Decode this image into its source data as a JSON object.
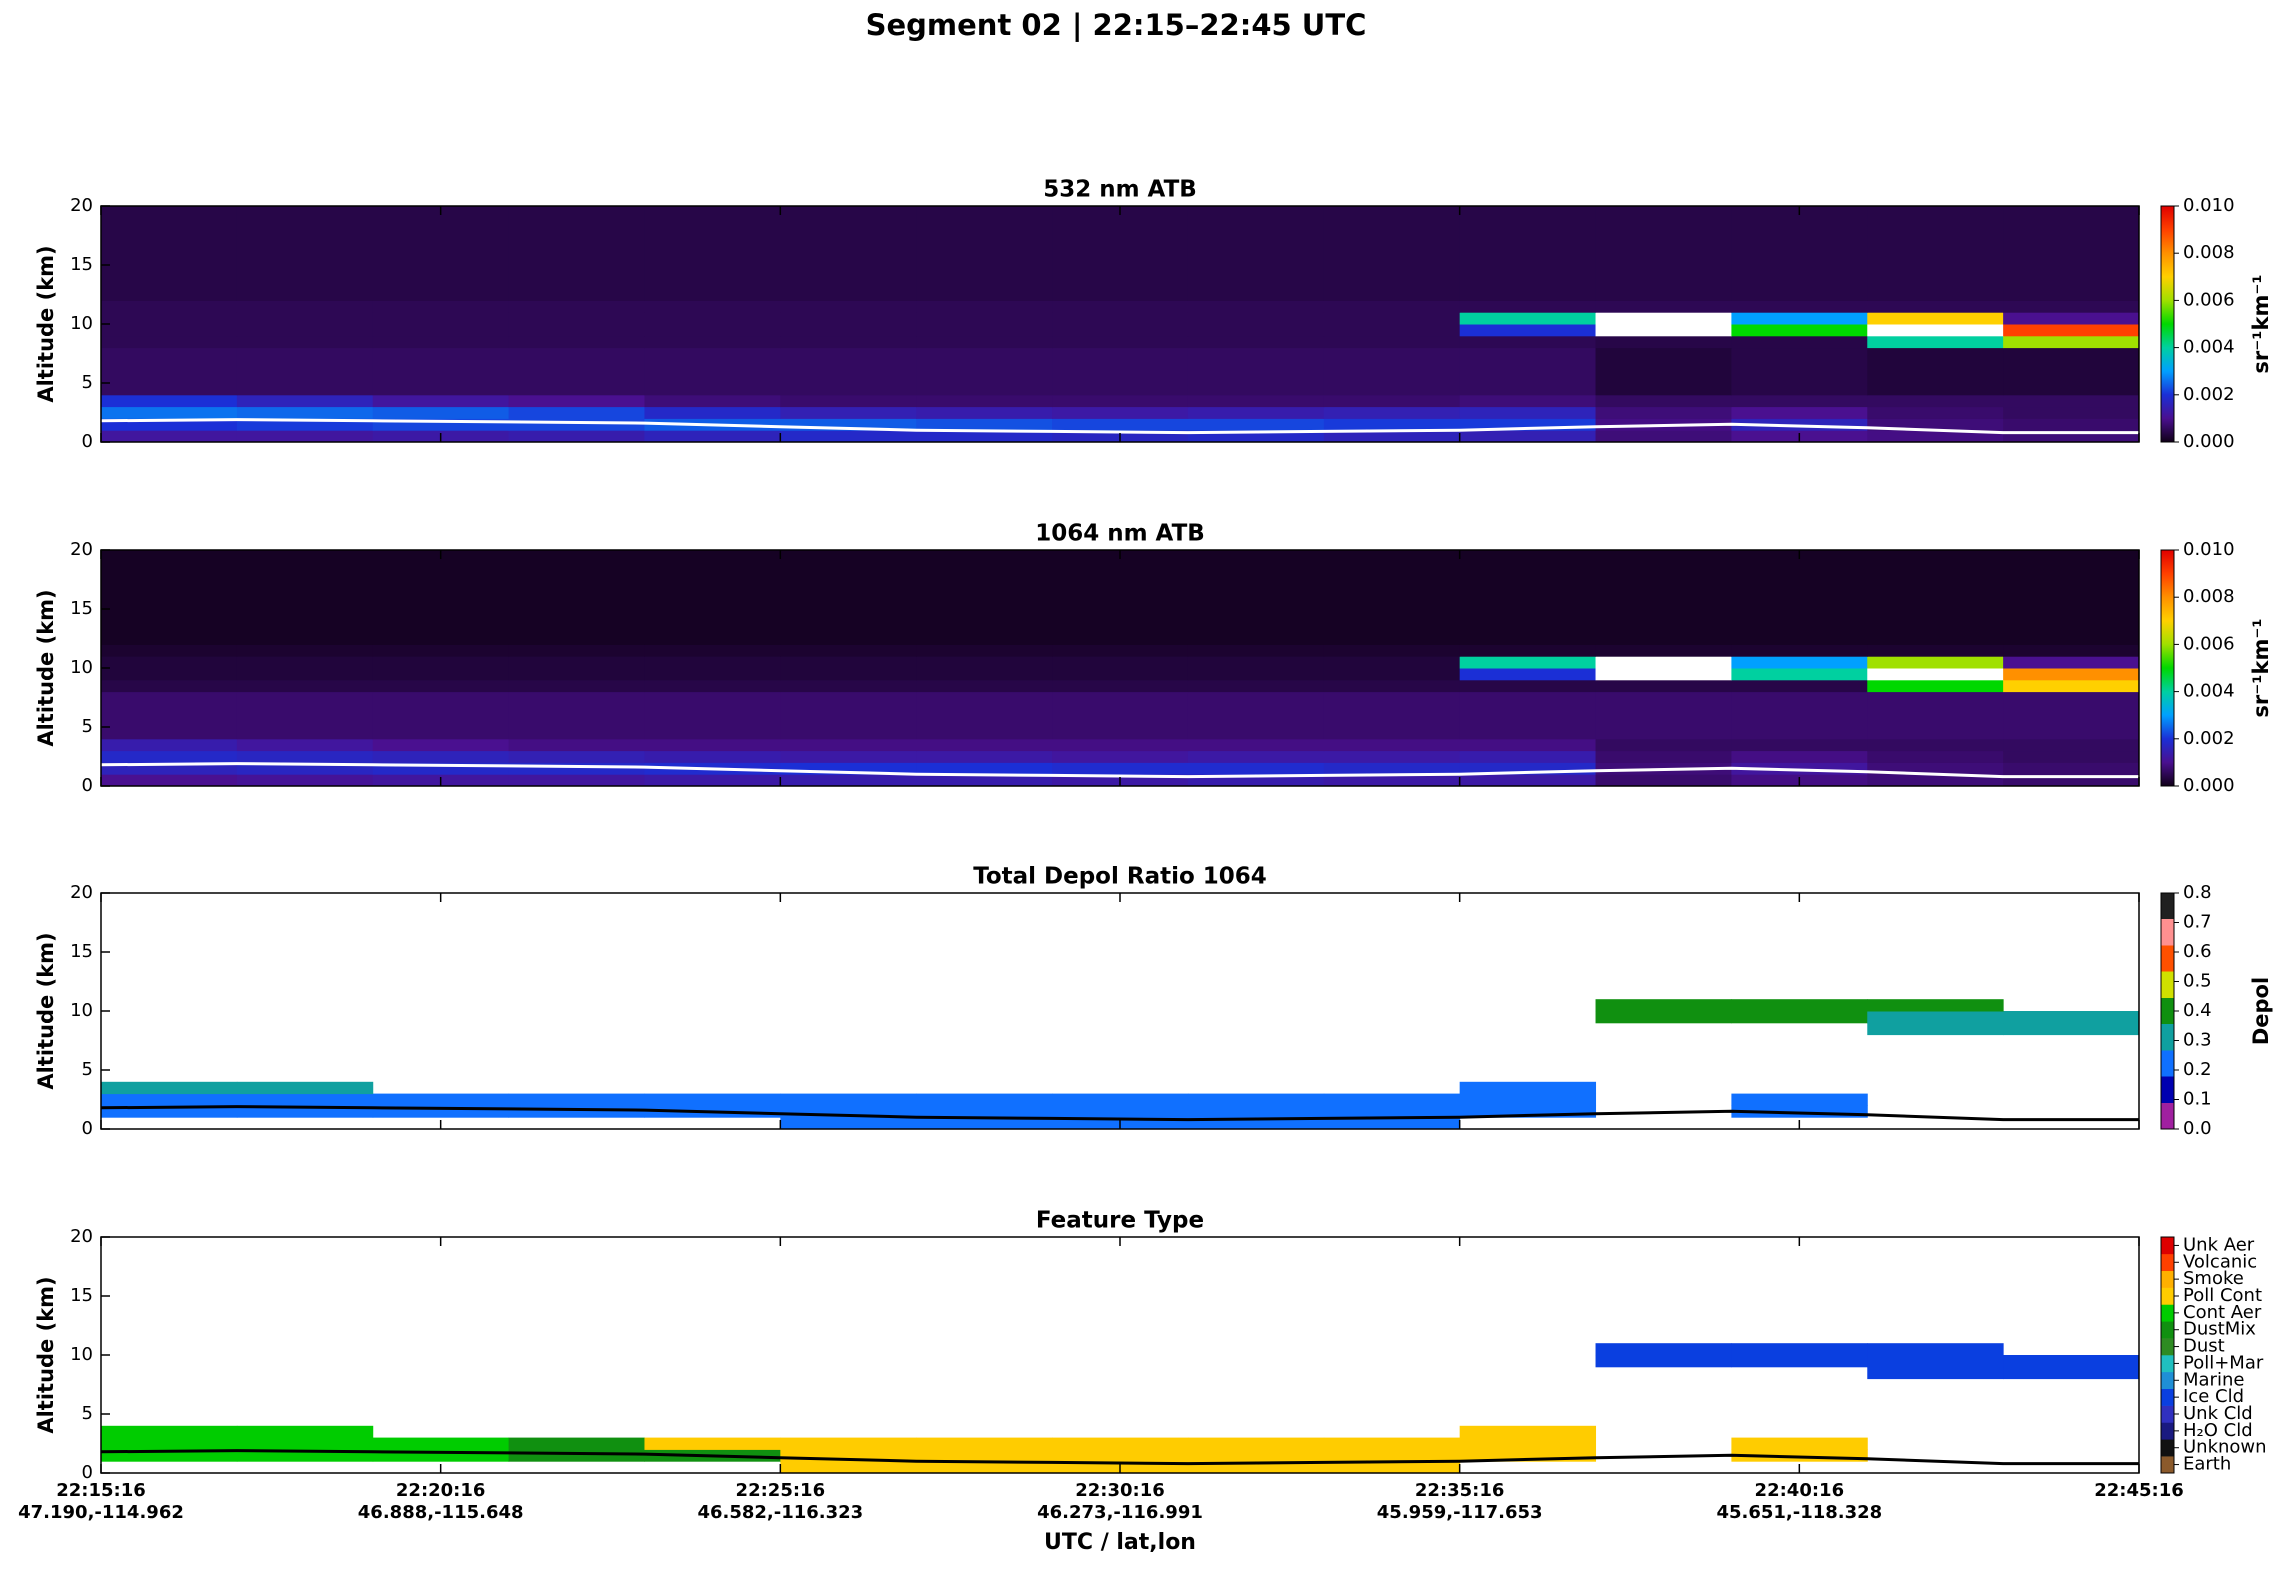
{
  "title": "Segment 02  |  22:15–22:45 UTC",
  "x_axis": {
    "label": "UTC / lat,lon",
    "xlim": [
      "22:15:16",
      "22:45:16"
    ],
    "edges": [
      "22:15:16",
      "22:17:16",
      "22:19:16",
      "22:21:16",
      "22:23:16",
      "22:25:16",
      "22:27:16",
      "22:29:16",
      "22:31:16",
      "22:33:16",
      "22:35:16",
      "22:37:16",
      "22:39:16",
      "22:41:16",
      "22:43:16",
      "22:45:16"
    ],
    "xticks": [
      "22:15:16",
      "22:20:16",
      "22:25:16",
      "22:30:16",
      "22:35:16",
      "22:40:16",
      "22:45:16"
    ],
    "xtick_positions": [
      "47.190,-114.962",
      "46.888,-115.648",
      "46.582,-116.323",
      "46.273,-116.991",
      "45.959,-117.653",
      "45.651,-118.328",
      null
    ]
  },
  "chart_data": [
    {
      "type": "heatmap",
      "title": "532 nm ATB",
      "ylabel": "Altitude (km)",
      "ylim": [
        0,
        20
      ],
      "yticks": [
        0,
        5,
        10,
        15,
        20
      ],
      "y_edges": [
        0,
        1,
        2,
        3,
        4,
        8,
        9,
        10,
        11,
        12,
        20
      ],
      "z": [
        [
          0.0012,
          0.0012,
          0.0013,
          0.0014,
          0.0016,
          0.0018,
          0.0018,
          0.0017,
          0.0018,
          0.0016,
          0.0015,
          0.0008,
          0.001,
          0.0009,
          0.0008
        ],
        [
          0.002,
          0.0021,
          0.0022,
          0.0022,
          0.0024,
          0.0024,
          0.0023,
          0.0022,
          0.0022,
          0.0021,
          0.0021,
          0.0009,
          0.0016,
          0.0008,
          0.0007
        ],
        [
          0.0026,
          0.0025,
          0.0024,
          0.0022,
          0.0018,
          0.0015,
          0.0014,
          0.0013,
          0.0014,
          0.0015,
          0.0016,
          0.0008,
          0.001,
          0.0007,
          0.0006
        ],
        [
          0.002,
          0.0016,
          0.0012,
          0.001,
          0.0008,
          0.0007,
          0.0007,
          0.0007,
          0.0007,
          0.0007,
          0.0008,
          0.0006,
          0.0006,
          0.0006,
          0.0006
        ],
        [
          0.0006,
          0.0006,
          0.0006,
          0.0006,
          0.0006,
          0.0006,
          0.0006,
          0.0006,
          0.0006,
          0.0006,
          0.0006,
          0.0003,
          0.0004,
          0.0003,
          0.0003
        ],
        [
          0.0005,
          0.0005,
          0.0005,
          0.0005,
          0.0005,
          0.0005,
          0.0005,
          0.0005,
          0.0005,
          0.0005,
          0.0005,
          0.0004,
          0.0004,
          0.004,
          0.006
        ],
        [
          0.0005,
          0.0005,
          0.0005,
          0.0005,
          0.0005,
          0.0005,
          0.0005,
          0.0005,
          0.0005,
          0.0005,
          0.002,
          0.012,
          0.005,
          0.012,
          0.009
        ],
        [
          0.0005,
          0.0005,
          0.0005,
          0.0005,
          0.0005,
          0.0005,
          0.0005,
          0.0005,
          0.0005,
          0.0005,
          0.004,
          0.012,
          0.003,
          0.007,
          0.001
        ],
        [
          0.0005,
          0.0005,
          0.0005,
          0.0005,
          0.0005,
          0.0005,
          0.0005,
          0.0005,
          0.0005,
          0.0005,
          0.0005,
          0.0005,
          0.0005,
          0.0005,
          0.0005
        ],
        [
          0.0004,
          0.0004,
          0.0004,
          0.0004,
          0.0004,
          0.0004,
          0.0004,
          0.0004,
          0.0004,
          0.0004,
          0.0004,
          0.0004,
          0.0004,
          0.0004,
          0.0004
        ]
      ],
      "surface": [
        1.8,
        1.9,
        1.8,
        1.7,
        1.6,
        1.3,
        1.0,
        0.9,
        0.8,
        0.9,
        1.0,
        1.3,
        1.5,
        1.2,
        0.8,
        0.8
      ],
      "surface_color": "#ffffff",
      "clim": [
        0,
        0.01
      ],
      "over_color": "#ffffff",
      "colormap": [
        "#100018",
        "#4a1090",
        "#1b2fd6",
        "#00a0ff",
        "#00d0a0",
        "#00d800",
        "#a0e000",
        "#ffd000",
        "#ff9000",
        "#ff4000",
        "#e00000"
      ],
      "cticks": [
        {
          "value": 0,
          "label": "0.000"
        },
        {
          "value": 0.002,
          "label": "0.002"
        },
        {
          "value": 0.004,
          "label": "0.004"
        },
        {
          "value": 0.006,
          "label": "0.006"
        },
        {
          "value": 0.008,
          "label": "0.008"
        },
        {
          "value": 0.01,
          "label": "0.010"
        }
      ],
      "clabel": "sr⁻¹km⁻¹"
    },
    {
      "type": "heatmap",
      "title": "1064 nm ATB",
      "ylabel": "Altitude (km)",
      "ylim": [
        0,
        20
      ],
      "yticks": [
        0,
        5,
        10,
        15,
        20
      ],
      "y_edges": [
        0,
        1,
        2,
        3,
        4,
        8,
        9,
        10,
        11,
        12,
        20
      ],
      "z": [
        [
          0.001,
          0.0011,
          0.0012,
          0.0012,
          0.0013,
          0.0014,
          0.0014,
          0.0013,
          0.0014,
          0.0013,
          0.0013,
          0.0007,
          0.0009,
          0.0008,
          0.0007
        ],
        [
          0.0016,
          0.0017,
          0.0018,
          0.0018,
          0.0019,
          0.002,
          0.002,
          0.0019,
          0.0019,
          0.0018,
          0.0018,
          0.0008,
          0.0012,
          0.0008,
          0.0007
        ],
        [
          0.0018,
          0.0017,
          0.0016,
          0.0015,
          0.0014,
          0.0013,
          0.0013,
          0.0012,
          0.0013,
          0.0013,
          0.0014,
          0.0007,
          0.0009,
          0.0007,
          0.0006
        ],
        [
          0.0014,
          0.0012,
          0.001,
          0.0009,
          0.0009,
          0.0009,
          0.0009,
          0.0009,
          0.0009,
          0.0009,
          0.0009,
          0.0006,
          0.0006,
          0.0006,
          0.0006
        ],
        [
          0.0007,
          0.0007,
          0.0007,
          0.0007,
          0.0007,
          0.0007,
          0.0007,
          0.0007,
          0.0007,
          0.0007,
          0.0007,
          0.0007,
          0.0007,
          0.0007,
          0.0007
        ],
        [
          0.0004,
          0.0004,
          0.0004,
          0.0004,
          0.0004,
          0.0004,
          0.0004,
          0.0004,
          0.0004,
          0.0004,
          0.0004,
          0.0004,
          0.0004,
          0.005,
          0.007
        ],
        [
          0.0003,
          0.0003,
          0.0003,
          0.0003,
          0.0003,
          0.0003,
          0.0003,
          0.0003,
          0.0003,
          0.0003,
          0.002,
          0.011,
          0.004,
          0.012,
          0.008
        ],
        [
          0.0003,
          0.0003,
          0.0003,
          0.0003,
          0.0003,
          0.0003,
          0.0003,
          0.0003,
          0.0003,
          0.0003,
          0.004,
          0.012,
          0.003,
          0.006,
          0.001
        ],
        [
          0.0002,
          0.0002,
          0.0002,
          0.0002,
          0.0002,
          0.0002,
          0.0002,
          0.0002,
          0.0002,
          0.0002,
          0.0002,
          0.0002,
          0.0002,
          0.0002,
          0.0002
        ],
        [
          0.0001,
          0.0001,
          0.0001,
          0.0001,
          0.0001,
          0.0001,
          0.0001,
          0.0001,
          0.0001,
          0.0001,
          0.0001,
          0.0001,
          0.0001,
          0.0001,
          0.0001
        ]
      ],
      "surface": [
        1.8,
        1.9,
        1.8,
        1.7,
        1.6,
        1.3,
        1.0,
        0.9,
        0.8,
        0.9,
        1.0,
        1.3,
        1.5,
        1.2,
        0.8,
        0.8
      ],
      "surface_color": "#ffffff",
      "clim": [
        0,
        0.01
      ],
      "over_color": "#ffffff",
      "colormap": [
        "#100018",
        "#4a1090",
        "#1b2fd6",
        "#00a0ff",
        "#00d0a0",
        "#00d800",
        "#a0e000",
        "#ffd000",
        "#ff9000",
        "#ff4000",
        "#e00000"
      ],
      "cticks": [
        {
          "value": 0,
          "label": "0.000"
        },
        {
          "value": 0.002,
          "label": "0.002"
        },
        {
          "value": 0.004,
          "label": "0.004"
        },
        {
          "value": 0.006,
          "label": "0.006"
        },
        {
          "value": 0.008,
          "label": "0.008"
        },
        {
          "value": 0.01,
          "label": "0.010"
        }
      ],
      "clabel": "sr⁻¹km⁻¹"
    },
    {
      "type": "heatmap",
      "title": "Total Depol Ratio 1064",
      "ylabel": "Altitude (km)",
      "ylim": [
        0,
        20
      ],
      "yticks": [
        0,
        5,
        10,
        15,
        20
      ],
      "y_edges": [
        0,
        1,
        2,
        3,
        4,
        8,
        9,
        10,
        11,
        12,
        20
      ],
      "z": [
        [
          null,
          null,
          null,
          null,
          null,
          0.25,
          0.22,
          0.28,
          0.24,
          0.26,
          null,
          null,
          null,
          null,
          null
        ],
        [
          0.28,
          0.3,
          0.26,
          0.27,
          0.25,
          0.24,
          0.23,
          0.25,
          0.26,
          0.27,
          0.28,
          null,
          0.22,
          null,
          null
        ],
        [
          0.3,
          0.29,
          0.28,
          0.27,
          0.26,
          0.25,
          0.24,
          0.24,
          0.25,
          0.26,
          0.27,
          null,
          0.25,
          null,
          null
        ],
        [
          0.32,
          0.31,
          null,
          null,
          null,
          null,
          null,
          null,
          null,
          null,
          0.28,
          null,
          null,
          null,
          null
        ],
        [
          null,
          null,
          null,
          null,
          null,
          null,
          null,
          null,
          null,
          null,
          null,
          null,
          null,
          null,
          null
        ],
        [
          null,
          null,
          null,
          null,
          null,
          null,
          null,
          null,
          null,
          null,
          null,
          null,
          null,
          0.38,
          0.35
        ],
        [
          null,
          null,
          null,
          null,
          null,
          null,
          null,
          null,
          null,
          null,
          null,
          0.42,
          0.4,
          0.36,
          0.34
        ],
        [
          null,
          null,
          null,
          null,
          null,
          null,
          null,
          null,
          null,
          null,
          null,
          0.47,
          0.45,
          0.41,
          null
        ],
        [
          null,
          null,
          null,
          null,
          null,
          null,
          null,
          null,
          null,
          null,
          null,
          null,
          null,
          null,
          null
        ],
        [
          null,
          null,
          null,
          null,
          null,
          null,
          null,
          null,
          null,
          null,
          null,
          null,
          null,
          null,
          null
        ]
      ],
      "surface": [
        1.8,
        1.9,
        1.8,
        1.7,
        1.6,
        1.3,
        1.0,
        0.9,
        0.8,
        0.9,
        1.0,
        1.3,
        1.5,
        1.2,
        0.8,
        0.8
      ],
      "surface_color": "#000000",
      "clim": [
        0,
        0.8
      ],
      "colormap": [
        "#a020a0",
        "#0000b0",
        "#1070ff",
        "#10a0a0",
        "#109010",
        "#d0e000",
        "#ff5000",
        "#ff9090",
        "#202020"
      ],
      "discrete": true,
      "cticks": [
        {
          "value": 0,
          "label": "0.0"
        },
        0.1,
        0.2,
        0.3,
        0.4,
        0.5,
        0.6,
        0.7,
        0.8
      ],
      "clabel": "Depol"
    },
    {
      "type": "heatmap",
      "title": "Feature Type",
      "ylabel": "Altitude (km)",
      "ylim": [
        0,
        20
      ],
      "yticks": [
        0,
        5,
        10,
        15,
        20
      ],
      "y_edges": [
        0,
        1,
        2,
        3,
        4,
        8,
        9,
        10,
        11,
        12,
        20
      ],
      "z": [
        [
          null,
          null,
          null,
          null,
          null,
          "Poll Cont",
          "Poll Cont",
          "Poll Cont",
          "Poll Cont",
          "Poll Cont",
          null,
          null,
          null,
          null,
          null
        ],
        [
          "Cont Aer",
          "Cont Aer",
          "Cont Aer",
          "DustMix",
          "DustMix",
          "Poll Cont",
          "Poll Cont",
          "Poll Cont",
          "Poll Cont",
          "Poll Cont",
          "Poll Cont",
          null,
          "Poll Cont",
          null,
          null
        ],
        [
          "Cont Aer",
          "Cont Aer",
          "Cont Aer",
          "DustMix",
          "Poll Cont",
          "Poll Cont",
          "Poll Cont",
          "Poll Cont",
          "Poll Cont",
          "Poll Cont",
          "Poll Cont",
          null,
          "Poll Cont",
          null,
          null
        ],
        [
          "Cont Aer",
          "Cont Aer",
          null,
          null,
          null,
          null,
          null,
          null,
          null,
          null,
          "Poll Cont",
          null,
          null,
          null,
          null
        ],
        [
          null,
          null,
          null,
          null,
          null,
          null,
          null,
          null,
          null,
          null,
          null,
          null,
          null,
          null,
          null
        ],
        [
          null,
          null,
          null,
          null,
          null,
          null,
          null,
          null,
          null,
          null,
          null,
          null,
          null,
          "Ice Cld",
          "Ice Cld"
        ],
        [
          null,
          null,
          null,
          null,
          null,
          null,
          null,
          null,
          null,
          null,
          null,
          "Ice Cld",
          "Ice Cld",
          "Ice Cld",
          "Ice Cld"
        ],
        [
          null,
          null,
          null,
          null,
          null,
          null,
          null,
          null,
          null,
          null,
          null,
          "Ice Cld",
          "Ice Cld",
          "Ice Cld",
          null
        ],
        [
          null,
          null,
          null,
          null,
          null,
          null,
          null,
          null,
          null,
          null,
          null,
          null,
          null,
          null,
          null
        ],
        [
          null,
          null,
          null,
          null,
          null,
          null,
          null,
          null,
          null,
          null,
          null,
          null,
          null,
          null,
          null
        ]
      ],
      "surface": [
        1.8,
        1.9,
        1.8,
        1.7,
        1.6,
        1.3,
        1.0,
        0.9,
        0.8,
        0.9,
        1.0,
        1.3,
        1.5,
        1.2,
        0.8,
        0.8
      ],
      "surface_color": "#000000",
      "classes": [
        "Earth",
        "Unknown",
        "H₂O Cld",
        "Unk Cld",
        "Ice Cld",
        "Marine",
        "Poll+Mar",
        "Dust",
        "DustMix",
        "Cont Aer",
        "Poll Cont",
        "Smoke",
        "Volcanic",
        "Unk Aer"
      ],
      "class_colors": [
        "#8b5a2b",
        "#111111",
        "#1a1a80",
        "#3030c0",
        "#0a3fe0",
        "#1f8fd6",
        "#20c0c0",
        "#2e8b22",
        "#109010",
        "#00cc00",
        "#ffcc00",
        "#ffb000",
        "#ff4000",
        "#dd0000"
      ]
    }
  ]
}
